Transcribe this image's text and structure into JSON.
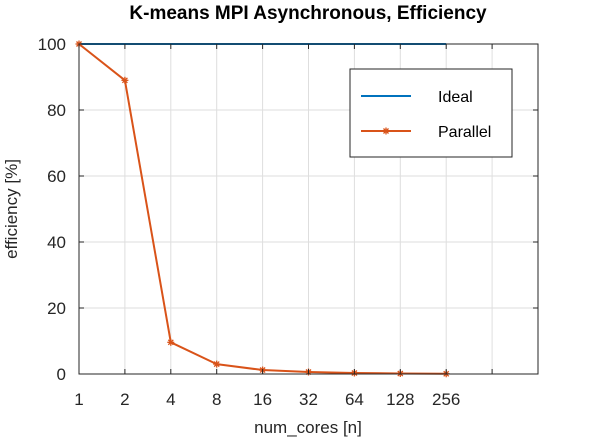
{
  "chart_data": {
    "type": "line",
    "title": "K-means MPI Asynchronous, Efficiency",
    "xlabel": "num_cores [n]",
    "ylabel": "efficiency [%]",
    "x_scale": "log2",
    "x_tick_labels": [
      "1",
      "2",
      "4",
      "8",
      "16",
      "32",
      "64",
      "128",
      "256"
    ],
    "x_ticks": [
      1,
      2,
      4,
      8,
      16,
      32,
      64,
      128,
      256
    ],
    "xlim": [
      1,
      1024
    ],
    "ylim": [
      0,
      100
    ],
    "y_ticks": [
      0,
      20,
      40,
      60,
      80,
      100
    ],
    "grid": true,
    "legend_position": "top-right",
    "series": [
      {
        "name": "Ideal",
        "color": "#0072BD",
        "marker": "none",
        "x": [
          1,
          2,
          4,
          8,
          16,
          32,
          64,
          128,
          256
        ],
        "values": [
          100,
          100,
          100,
          100,
          100,
          100,
          100,
          100,
          100
        ]
      },
      {
        "name": "Parallel",
        "color": "#D95319",
        "marker": "asterisk",
        "x": [
          1,
          2,
          4,
          8,
          16,
          32,
          64,
          128,
          256
        ],
        "values": [
          100,
          89,
          9.6,
          3.0,
          1.2,
          0.6,
          0.3,
          0.15,
          0.07
        ]
      }
    ]
  }
}
